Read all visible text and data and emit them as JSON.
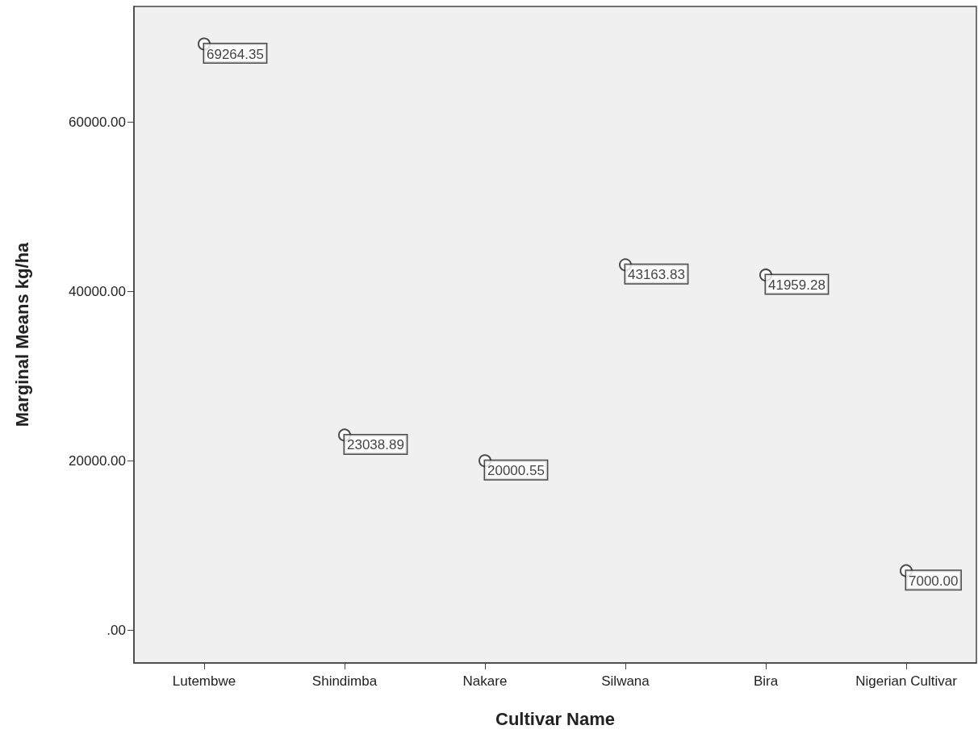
{
  "chart_data": {
    "type": "scatter",
    "xlabel": "Cultivar Name",
    "ylabel": "Marginal Means kg/ha",
    "categories": [
      "Lutembwe",
      "Shindimba",
      "Nakare",
      "Silwana",
      "Bira",
      "Nigerian Cultivar"
    ],
    "series": [
      {
        "color": "#222222",
        "values": [
          69264.35,
          23038.89,
          20000.55,
          43163.83,
          41959.28,
          7000.0
        ],
        "value_labels": [
          "69264.35",
          "23038.89",
          "20000.55",
          "43163.83",
          "41959.28",
          "7000.00"
        ]
      }
    ],
    "ylim": [
      -3900,
      73700
    ],
    "yticks": [
      {
        "value": 0,
        "label": ".00"
      },
      {
        "value": 20000,
        "label": "20000.00"
      },
      {
        "value": 40000,
        "label": "40000.00"
      },
      {
        "value": 60000,
        "label": "60000.00"
      }
    ],
    "marker": "circle",
    "grid": false
  }
}
